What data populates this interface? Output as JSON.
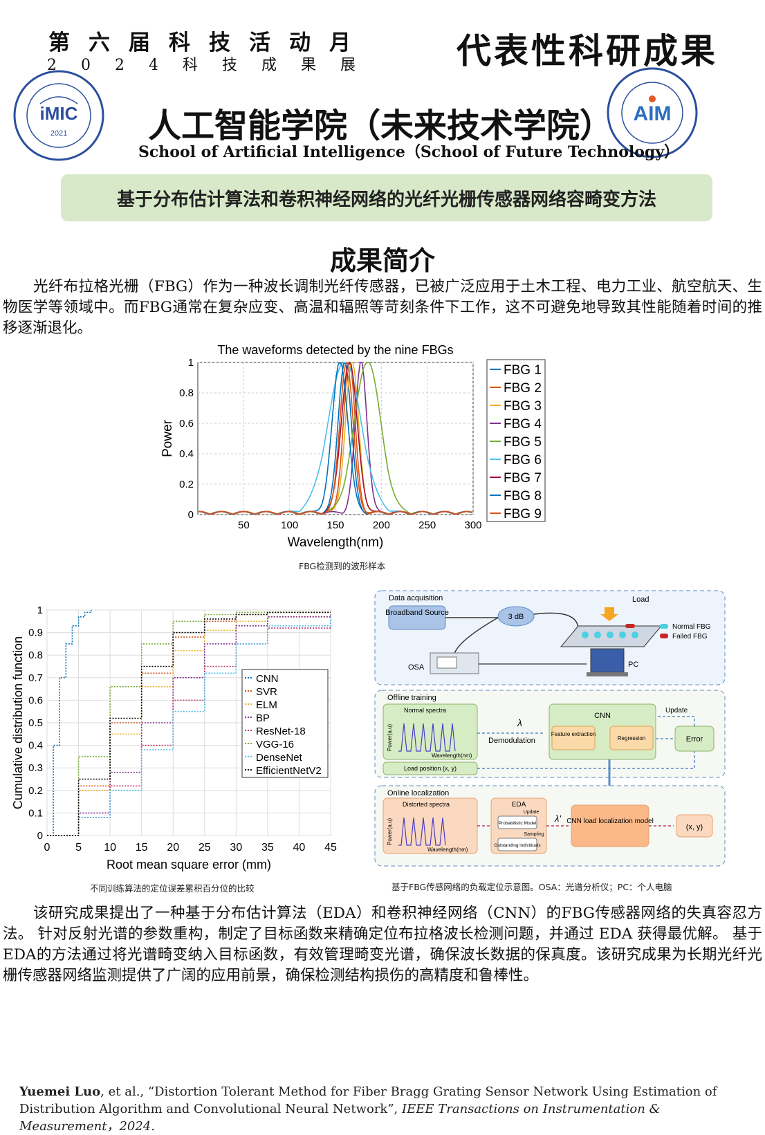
{
  "header": {
    "event_title": "第六届科技活动月",
    "event_subtitle": "2024科技成果展",
    "result_label": "代表性科研成果",
    "college_cn": "人工智能学院（未来技术学院）",
    "college_en": "School of Artificial Intelligence（School of Future Technology）",
    "left_logo": {
      "text": "iMIC",
      "year": "2021",
      "icon": "imic-lab-seal"
    },
    "right_logo": {
      "text": "AIM",
      "icon": "institute-ai-medicine-seal"
    }
  },
  "banner_title": "基于分布估计算法和卷积神经网络的光纤光栅传感器网络容畸变方法",
  "section_title": "成果简介",
  "intro_paragraph": "光纤布拉格光栅（FBG）作为一种波长调制光纤传感器，已被广泛应用于土木工程、电力工业、航空航天、生物医学等领域中。而FBG通常在复杂应变、高温和辐照等苛刻条件下工作，这不可避免地导致其性能随着时间的推移逐渐退化。",
  "figure1": {
    "caption": "FBG检测到的波形样本",
    "chart_data": {
      "type": "line",
      "title": "The waveforms detected by the nine FBGs",
      "xlabel": "Wavelength(nm)",
      "ylabel": "Power",
      "xlim": [
        0,
        300
      ],
      "ylim": [
        0,
        1
      ],
      "xticks": [
        "50",
        "100",
        "150",
        "200",
        "250",
        "300"
      ],
      "yticks": [
        "0",
        "0.2",
        "0.4",
        "0.6",
        "0.8",
        "1"
      ],
      "grid": true,
      "legend_position": "outside-right",
      "series": [
        {
          "name": "FBG 1",
          "color": "#0072bd",
          "center": 160,
          "width": 10
        },
        {
          "name": "FBG 2",
          "color": "#d95319",
          "center": 165,
          "width": 9
        },
        {
          "name": "FBG 3",
          "color": "#edb120",
          "center": 168,
          "width": 10
        },
        {
          "name": "FBG 4",
          "color": "#7e2f8e",
          "center": 178,
          "width": 9
        },
        {
          "name": "FBG 5",
          "color": "#77ac30",
          "center": 185,
          "width": 20
        },
        {
          "name": "FBG 6",
          "color": "#4dbeee",
          "center": 160,
          "width": 25
        },
        {
          "name": "FBG 7",
          "color": "#a2142f",
          "center": 165,
          "width": 12
        },
        {
          "name": "FBG 8",
          "color": "#0072bd",
          "center": 155,
          "width": 12
        },
        {
          "name": "FBG 9",
          "color": "#d95319",
          "center": 162,
          "width": 10
        }
      ]
    }
  },
  "figure2": {
    "caption": "不同训练算法的定位误差累积百分位的比较",
    "chart_data": {
      "type": "line",
      "xlabel": "Root mean square error (mm)",
      "ylabel": "Cumulative distribution function",
      "xlim": [
        0,
        45
      ],
      "ylim": [
        0,
        1
      ],
      "xticks": [
        "0",
        "5",
        "10",
        "15",
        "20",
        "25",
        "30",
        "35",
        "40",
        "45"
      ],
      "yticks": [
        "0",
        "0.1",
        "0.2",
        "0.3",
        "0.4",
        "0.5",
        "0.6",
        "0.7",
        "0.8",
        "0.9",
        "1"
      ],
      "grid": true,
      "legend_position": "center-right",
      "series": [
        {
          "name": "CNN",
          "color": "#0072bd",
          "x": [
            0,
            1,
            2,
            3,
            4,
            5,
            6,
            7
          ],
          "y": [
            0,
            0.4,
            0.7,
            0.85,
            0.93,
            0.97,
            0.99,
            1
          ]
        },
        {
          "name": "SVR",
          "color": "#d95319",
          "x": [
            0,
            5,
            10,
            15,
            20,
            25,
            30,
            35,
            45
          ],
          "y": [
            0,
            0.22,
            0.5,
            0.72,
            0.88,
            0.95,
            0.98,
            0.99,
            0.99
          ]
        },
        {
          "name": "ELM",
          "color": "#edb120",
          "x": [
            0,
            5,
            10,
            15,
            20,
            25,
            30,
            35,
            45
          ],
          "y": [
            0,
            0.2,
            0.45,
            0.66,
            0.82,
            0.91,
            0.95,
            0.97,
            0.98
          ]
        },
        {
          "name": "BP",
          "color": "#7e2f8e",
          "x": [
            0,
            5,
            10,
            15,
            20,
            25,
            30,
            35,
            45
          ],
          "y": [
            0,
            0.1,
            0.28,
            0.5,
            0.7,
            0.85,
            0.93,
            0.97,
            0.98
          ]
        },
        {
          "name": "ResNet-18",
          "color": "#c0396c",
          "x": [
            0,
            5,
            10,
            15,
            20,
            25,
            30,
            35,
            45
          ],
          "y": [
            0,
            0.08,
            0.22,
            0.4,
            0.6,
            0.75,
            0.85,
            0.92,
            0.97
          ]
        },
        {
          "name": "VGG-16",
          "color": "#77ac30",
          "x": [
            0,
            5,
            10,
            15,
            20,
            25,
            30,
            35,
            45
          ],
          "y": [
            0,
            0.35,
            0.66,
            0.85,
            0.95,
            0.98,
            0.99,
            0.99,
            0.99
          ]
        },
        {
          "name": "DenseNet",
          "color": "#4dbeee",
          "x": [
            0,
            5,
            10,
            15,
            20,
            25,
            30,
            35,
            45
          ],
          "y": [
            0,
            0.08,
            0.2,
            0.38,
            0.55,
            0.72,
            0.85,
            0.93,
            0.97
          ]
        },
        {
          "name": "EfficientNetV2",
          "color": "#000000",
          "x": [
            0,
            5,
            10,
            15,
            20,
            25,
            30,
            35,
            45
          ],
          "y": [
            0,
            0.25,
            0.52,
            0.75,
            0.9,
            0.96,
            0.98,
            0.99,
            0.99
          ]
        }
      ]
    }
  },
  "figure3": {
    "caption": "基于FBG传感网络的负载定位示意图。OSA：光谱分析仪；PC：个人电脑",
    "acquisition": {
      "title": "Data acquisition",
      "broadband_source": "Broadband Source",
      "coupler": "3 dB",
      "load": "Load",
      "osa": "OSA",
      "pc": "PC",
      "legend_normal": "Normal FBG",
      "legend_failed": "Failed FBG"
    },
    "offline": {
      "title": "Offline training",
      "spectra_label": "Normal spectra",
      "axis_y": "Power(a.u)",
      "axis_x": "Wavelength(nm)",
      "lambda": "λ",
      "demod": "Demodulation",
      "cnn": "CNN",
      "feature": "Feature extraction",
      "regression": "Regression",
      "update": "Update",
      "error": "Error",
      "load_position": "Load position (x, y)"
    },
    "online": {
      "title": "Online localization",
      "spectra_label": "Distorted spectra",
      "axis_y": "Power(a.u)",
      "axis_x": "Wavelength(nm)",
      "eda": "EDA",
      "update": "Update",
      "prob_model": "Probabilistic Model",
      "sampling": "Sampling",
      "outstanding": "Outstanding individuals",
      "lambda_prime": "λ'",
      "cnn_load": "CNN load localization model",
      "output": "(x, y)"
    }
  },
  "summary_paragraph": "该研究成果提出了一种基于分布估计算法（EDA）和卷积神经网络（CNN）的FBG传感器网络的失真容忍方法。 针对反射光谱的参数重构，制定了目标函数来精确定位布拉格波长检测问题，并通过 EDA 获得最优解。 基于EDA的方法通过将光谱畸变纳入目标函数，有效管理畸变光谱，确保波长数据的保真度。该研究成果为长期光纤光栅传感器网络监测提供了广阔的应用前景，确保检测结构损伤的高精度和鲁棒性。",
  "reference": {
    "author": "Yuemei Luo",
    "rest": ", et al., “Distortion Tolerant Method for Fiber Bragg Grating Sensor Network Using Estimation of Distribution Algorithm and Convolutional Neural Network”, ",
    "journal": "IEEE Transactions on Instrumentation & Measurement，2024."
  }
}
